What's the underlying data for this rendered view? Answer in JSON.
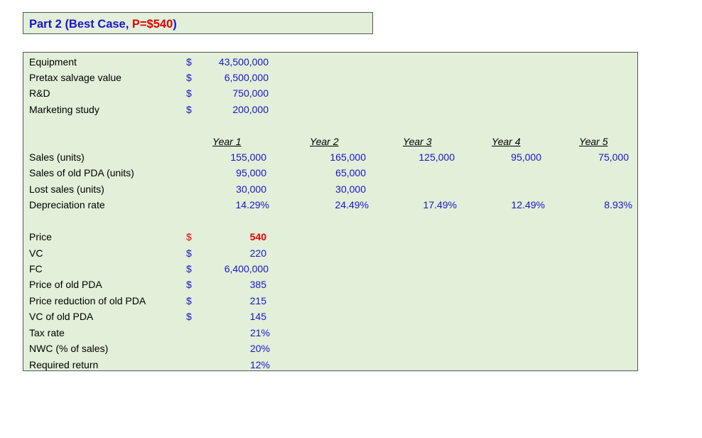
{
  "title": {
    "part": "Part 2 (Best Case, ",
    "highlight": "P=$540",
    "close": ")"
  },
  "currency_symbol": "$",
  "costs": [
    {
      "label": "Equipment",
      "value": "43,500,000"
    },
    {
      "label": "Pretax salvage value",
      "value": "6,500,000"
    },
    {
      "label": "R&D",
      "value": "750,000"
    },
    {
      "label": "Marketing study",
      "value": "200,000"
    }
  ],
  "years": [
    "Year 1",
    "Year 2",
    "Year 3",
    "Year 4",
    "Year 5"
  ],
  "yearly": [
    {
      "label": "Sales (units)",
      "values": [
        "155,000",
        "165,000",
        "125,000",
        "95,000",
        "75,000"
      ]
    },
    {
      "label": "Sales of old PDA (units)",
      "values": [
        "95,000",
        "65,000",
        "",
        "",
        ""
      ]
    },
    {
      "label": "Lost sales (units)",
      "values": [
        "30,000",
        "30,000",
        "",
        "",
        ""
      ]
    },
    {
      "label": "Depreciation rate",
      "values": [
        "14.29%",
        "24.49%",
        "17.49%",
        "12.49%",
        "8.93%"
      ]
    }
  ],
  "params": [
    {
      "label": "Price",
      "value": "540",
      "currency": true
    },
    {
      "label": "VC",
      "value": "220",
      "currency": true
    },
    {
      "label": "FC",
      "value": "6,400,000",
      "currency": true
    },
    {
      "label": "Price of old PDA",
      "value": "385",
      "currency": true
    },
    {
      "label": "Price reduction of old PDA",
      "value": "215",
      "currency": true
    },
    {
      "label": "VC of old PDA",
      "value": "145",
      "currency": true
    },
    {
      "label": "Tax rate",
      "value": "21%",
      "currency": false
    },
    {
      "label": "NWC (% of sales)",
      "value": "20%",
      "currency": false
    },
    {
      "label": "Required return",
      "value": "12%",
      "currency": false
    }
  ],
  "colors": {
    "background": "#e2efd9",
    "value": "#1a14c9",
    "highlight": "#e00000",
    "border": "#555555"
  }
}
